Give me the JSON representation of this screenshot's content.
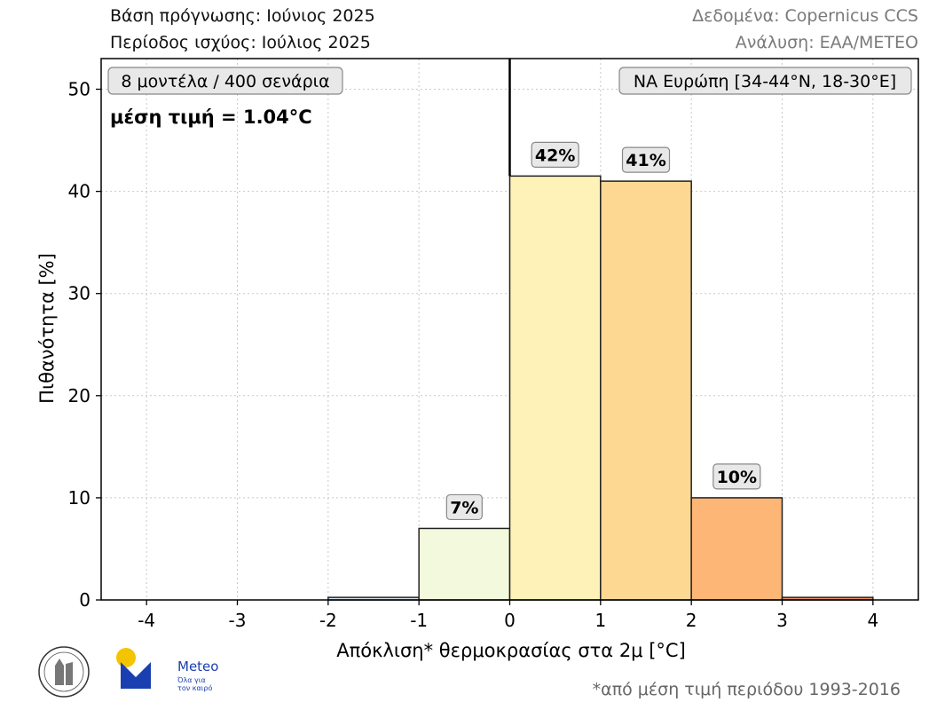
{
  "header": {
    "forecast_base": "Βάση πρόγνωσης: Ιούνιος 2025",
    "valid_period": "Περίοδος ισχύος: Ιούλιος 2025",
    "data_source": "Δεδομένα: Copernicus CCS",
    "analysis": "Ανάλυση: ΕΑΑ/METEO"
  },
  "chart_data": {
    "type": "bar",
    "bin_edges": [
      -2,
      -1,
      0,
      1,
      2,
      3,
      4
    ],
    "values": [
      0.25,
      7,
      41.5,
      41,
      10,
      0.25
    ],
    "bar_colors": [
      "#d7e6f2",
      "#f2f9dc",
      "#fff2b8",
      "#fdd893",
      "#fdb676",
      "#f0916a"
    ],
    "value_labels": [
      "",
      "7%",
      "42%",
      "41%",
      "10%",
      ""
    ],
    "xlim": [
      -4.5,
      4.5
    ],
    "ylim": [
      0,
      53
    ],
    "xticks": [
      -4,
      -3,
      -2,
      -1,
      0,
      1,
      2,
      3,
      4
    ],
    "xtick_labels": [
      "-4",
      "-3",
      "-2",
      "-1",
      "0",
      "1",
      "2",
      "3",
      "4"
    ],
    "yticks": [
      0,
      10,
      20,
      30,
      40,
      50
    ],
    "ytick_labels": [
      "0",
      "10",
      "20",
      "30",
      "40",
      "50"
    ],
    "xlabel": "Απόκλιση* θερμοκρασίας στα 2μ [°C]",
    "ylabel": "Πιθανότητα [%]",
    "grid": true,
    "reference_line_x": 0,
    "models_box": "8 μοντέλα / 400 σενάρια",
    "mean_text": "μέση τιμή = 1.04°C",
    "region_box": "ΝΑ Ευρώπη [34-44°N, 18-30°E]"
  },
  "branding": {
    "name": "Meteo",
    "tagline_1": "Όλα για",
    "tagline_2": "τον καιρό",
    "brand_color": "#1a3fb0",
    "sun_color": "#f5c400"
  },
  "footnote": "*από μέση τιμή περιόδου 1993-2016"
}
